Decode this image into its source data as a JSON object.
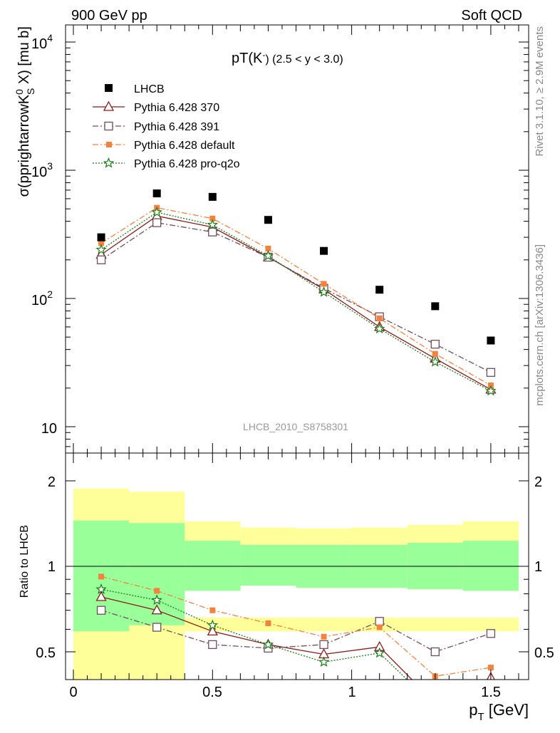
{
  "header": {
    "left": "900 GeV pp",
    "right": "Soft QCD"
  },
  "side_labels": {
    "rivet": "Rivet 3.1.10, ≥ 2.9M events",
    "mcplots": "mcplots.cern.ch [arXiv:1306.3436]"
  },
  "watermark": "LHCB_2010_S8758301",
  "colors": {
    "lhcb": "#000000",
    "p370": "#8b1a1a",
    "p391": "#6e4c5e",
    "pdefault": "#f4823c",
    "pq2o": "#1a7a1a",
    "band_yellow": "#ffff99",
    "band_green": "#99ff99"
  },
  "chart_data": [
    {
      "type": "scatter",
      "title_main": "pT(K",
      "title_sup": "-",
      "title_tail": ") (2.5 < y < 3.0)",
      "ylabel_pre": "σ(pprightarrowK",
      "ylabel_sup": "0",
      "ylabel_sub": "S",
      "ylabel_post": " X) [mu b]",
      "yscale": "log",
      "ylim": [
        6.5,
        14000
      ],
      "xlim": [
        -0.07,
        1.63
      ],
      "ytick_labels": [
        "10",
        "10",
        "10",
        "10"
      ],
      "ytick_exps": [
        "",
        "2",
        "3",
        "4"
      ],
      "x": [
        0.1,
        0.3,
        0.5,
        0.7,
        0.9,
        1.1,
        1.3,
        1.5
      ],
      "series": [
        {
          "name": "LHCB",
          "key": "lhcb",
          "marker": "square-filled",
          "line": "none",
          "values": [
            300,
            660,
            620,
            410,
            235,
            117,
            87,
            47
          ]
        },
        {
          "name": "Pythia 6.428 370",
          "key": "p370",
          "marker": "triangle-open",
          "line": "solid",
          "values": [
            220,
            440,
            360,
            210,
            118,
            60,
            34,
            19.5
          ]
        },
        {
          "name": "Pythia 6.428 391",
          "key": "p391",
          "marker": "square-open",
          "line": "dashdot",
          "values": [
            200,
            390,
            330,
            210,
            120,
            72,
            44,
            26.5
          ]
        },
        {
          "name": "Pythia 6.428 default",
          "key": "pdefault",
          "marker": "square-filled-small",
          "line": "dashdot",
          "values": [
            270,
            510,
            420,
            245,
            130,
            70,
            37,
            21
          ]
        },
        {
          "name": "Pythia 6.428 pro-q2o",
          "key": "pq2o",
          "marker": "star",
          "line": "dotted",
          "values": [
            240,
            470,
            375,
            215,
            112,
            58,
            32,
            19
          ]
        }
      ]
    },
    {
      "type": "line",
      "ylabel": "Ratio to LHCB",
      "ylim": [
        0.345,
        2.42
      ],
      "yscale": "log",
      "xlim": [
        -0.07,
        1.63
      ],
      "xlabel_main": "p",
      "xlabel_sub": "T",
      "xlabel_tail": " [GeV]",
      "xtick_labels": [
        "0",
        "0.5",
        "1",
        "1.5"
      ],
      "ytick_labels": [
        "0.5",
        "1",
        "2"
      ],
      "bins": [
        {
          "lo": 0.0,
          "hi": 0.2,
          "yellow": [
            0.345,
            1.88
          ],
          "green": [
            0.59,
            1.45
          ]
        },
        {
          "lo": 0.2,
          "hi": 0.4,
          "yellow": [
            0.345,
            1.83
          ],
          "green": [
            0.62,
            1.42
          ]
        },
        {
          "lo": 0.4,
          "hi": 0.6,
          "yellow": [
            0.82,
            1.44
          ],
          "green": [
            0.82,
            1.23
          ]
        },
        {
          "lo": 0.6,
          "hi": 0.8,
          "yellow": [
            0.855,
            1.37
          ],
          "green": [
            0.855,
            1.19
          ]
        },
        {
          "lo": 0.8,
          "hi": 1.0,
          "yellow": [
            0.84,
            1.36
          ],
          "green": [
            0.84,
            1.19
          ]
        },
        {
          "lo": 1.0,
          "hi": 1.2,
          "yellow": [
            0.84,
            1.37
          ],
          "green": [
            0.84,
            1.19
          ]
        },
        {
          "lo": 1.2,
          "hi": 1.4,
          "yellow": [
            0.83,
            1.4
          ],
          "green": [
            0.83,
            1.21
          ]
        },
        {
          "lo": 1.4,
          "hi": 1.6,
          "yellow": [
            0.82,
            1.44
          ],
          "green": [
            0.82,
            1.23
          ]
        }
      ],
      "yellow_extra": {
        "lo": 0.4,
        "hi": 1.6,
        "range": [
          0.59,
          0.66
        ]
      },
      "x": [
        0.1,
        0.3,
        0.5,
        0.7,
        0.9,
        1.1,
        1.3,
        1.5
      ],
      "series": [
        {
          "name": "Pythia 6.428 370",
          "key": "p370",
          "values": [
            0.78,
            0.7,
            0.59,
            0.53,
            0.49,
            0.52,
            0.33,
            0.405
          ]
        },
        {
          "name": "Pythia 6.428 391",
          "key": "p391",
          "values": [
            0.7,
            0.61,
            0.53,
            0.515,
            0.53,
            0.64,
            0.5,
            0.58
          ]
        },
        {
          "name": "Pythia 6.428 default",
          "key": "pdefault",
          "values": [
            0.92,
            0.82,
            0.7,
            0.63,
            0.565,
            0.61,
            0.41,
            0.44
          ]
        },
        {
          "name": "Pythia 6.428 pro-q2o",
          "key": "pq2o",
          "values": [
            0.83,
            0.76,
            0.62,
            0.53,
            0.46,
            0.495,
            0.32,
            0.385
          ]
        }
      ]
    }
  ]
}
